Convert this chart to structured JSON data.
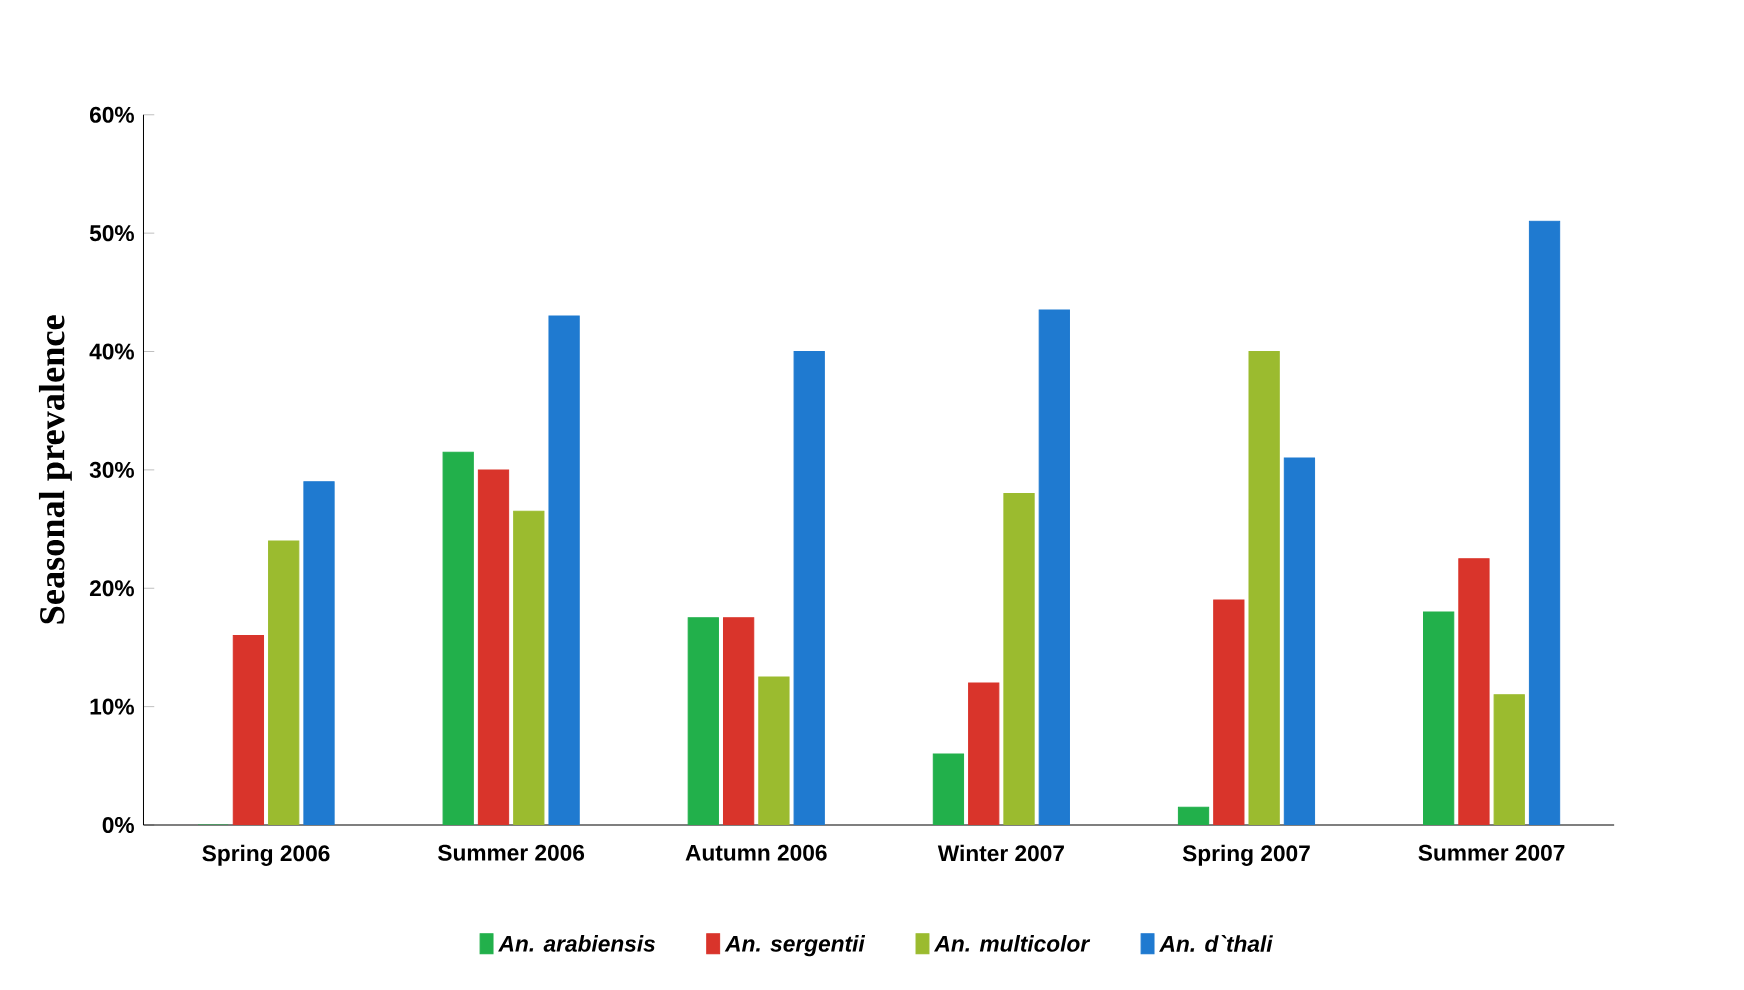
{
  "chart_data": {
    "type": "bar",
    "ylabel": "Seasonal prevalence",
    "categories": [
      "Spring 2006",
      "Summer 2006",
      "Autumn 2006",
      "Winter 2007",
      "Spring 2007",
      "Summer 2007"
    ],
    "series": [
      {
        "name": "*An. arabiensis*",
        "color": "#22b04b",
        "values": [
          0,
          31.5,
          17.5,
          6,
          1.5,
          18
        ]
      },
      {
        "name": "*An. sergentii*",
        "color": "#d9342b",
        "values": [
          16,
          30,
          17.5,
          12,
          19,
          22.5
        ]
      },
      {
        "name": "*An. multicolor*",
        "color": "#9bbb2f",
        "values": [
          24,
          26.5,
          12.5,
          28,
          40,
          11
        ]
      },
      {
        "name": "*An. d`thali*",
        "color": "#1f7ad0",
        "values": [
          29,
          43,
          40,
          43.5,
          31,
          51
        ]
      }
    ],
    "ylim": [
      0,
      60
    ],
    "yticks": [
      {
        "value": 0,
        "label": "0%"
      },
      {
        "value": 10,
        "label": "10%"
      },
      {
        "value": 20,
        "label": "20%"
      },
      {
        "value": 30,
        "label": "30%"
      },
      {
        "value": 40,
        "label": "40%"
      },
      {
        "value": 50,
        "label": "50%"
      },
      {
        "value": 60,
        "label": "60%"
      }
    ],
    "grid": false,
    "legend": "bottom"
  }
}
